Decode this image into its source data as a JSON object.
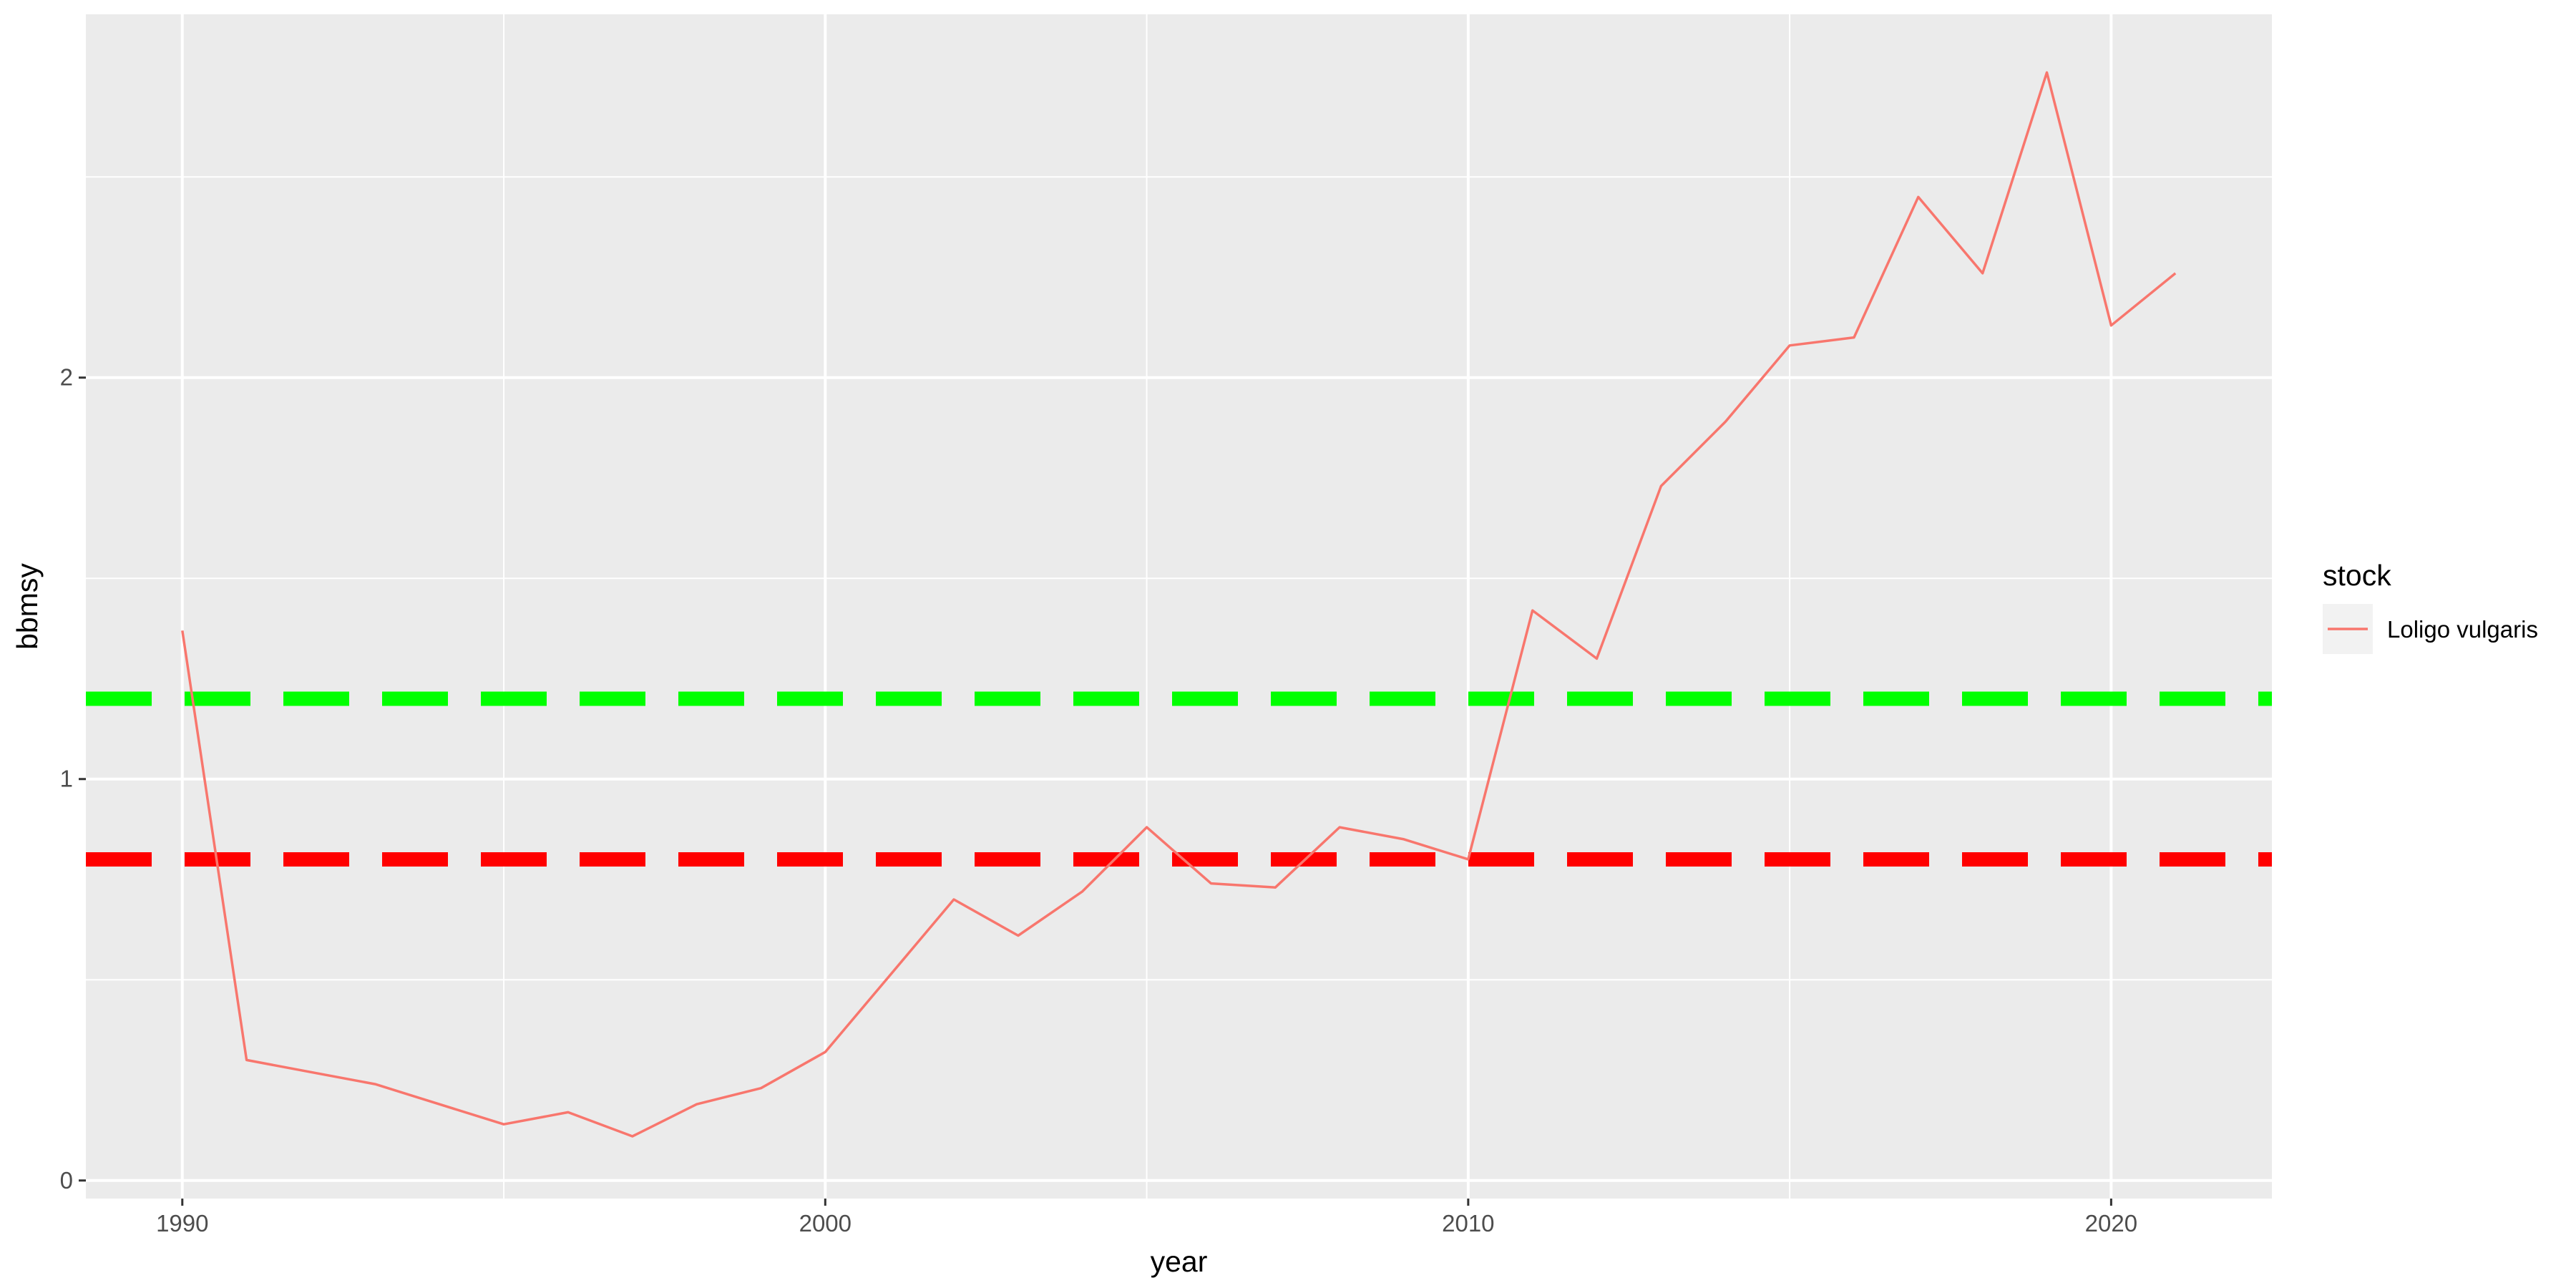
{
  "chart_data": {
    "type": "line",
    "xlabel": "year",
    "ylabel": "bbmsy",
    "xlim": [
      1988.5,
      2022.5
    ],
    "ylim": [
      -0.045,
      2.905
    ],
    "x_ticks": [
      1990,
      2000,
      2010,
      2020
    ],
    "y_ticks": [
      0,
      1,
      2
    ],
    "x_tick_labels": [
      "1990",
      "2000",
      "2010",
      "2020"
    ],
    "y_tick_labels": [
      "0",
      "1",
      "2"
    ],
    "x_minor": [
      1995,
      2005,
      2015
    ],
    "y_minor": [
      0.5,
      1.5,
      2.5
    ],
    "grid": true,
    "legend": {
      "title": "stock",
      "position": "right",
      "entries": [
        "Loligo vulgaris"
      ]
    },
    "series": [
      {
        "name": "Loligo vulgaris",
        "color": "#F8766D",
        "x": [
          1990,
          1991,
          1992,
          1993,
          1994,
          1995,
          1996,
          1997,
          1998,
          1999,
          2000,
          2001,
          2002,
          2003,
          2004,
          2005,
          2006,
          2007,
          2008,
          2009,
          2010,
          2011,
          2012,
          2013,
          2014,
          2015,
          2016,
          2017,
          2018,
          2019,
          2020,
          2021
        ],
        "y": [
          1.37,
          0.3,
          0.27,
          0.24,
          0.19,
          0.14,
          0.17,
          0.11,
          0.19,
          0.23,
          0.32,
          0.51,
          0.7,
          0.61,
          0.72,
          0.88,
          0.74,
          0.73,
          0.88,
          0.85,
          0.8,
          1.42,
          1.3,
          1.73,
          1.89,
          2.08,
          2.1,
          2.45,
          2.26,
          2.76,
          2.13,
          2.26
        ]
      }
    ],
    "reference_lines": [
      {
        "y": 1.2,
        "color": "#00FF00",
        "style": "dashed"
      },
      {
        "y": 0.8,
        "color": "#FF0000",
        "style": "dashed"
      }
    ],
    "colors": {
      "panel_bg": "#EBEBEB",
      "grid": "#FFFFFF",
      "legend_key_bg": "#F2F2F2"
    }
  }
}
